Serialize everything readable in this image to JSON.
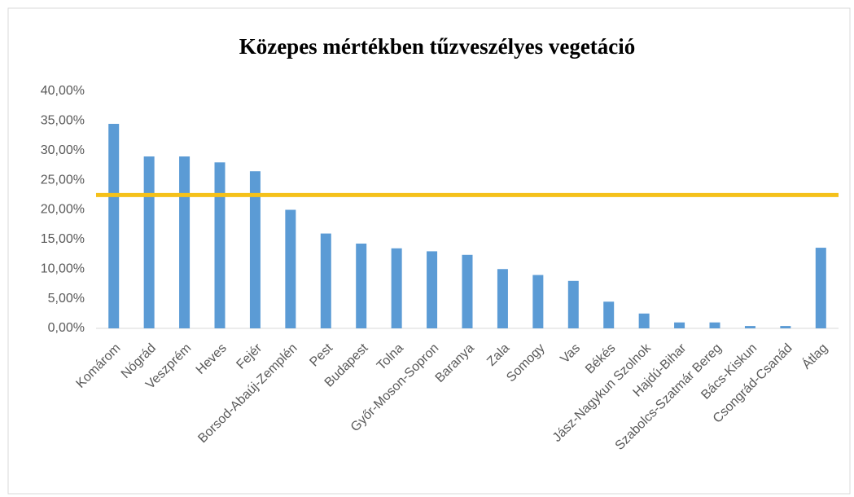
{
  "chart_data": {
    "type": "bar",
    "title": "Közepes mértékben tűzveszélyes vegetáció",
    "categories": [
      "Komárom",
      "Nógrád",
      "Veszprém",
      "Heves",
      "Fejér",
      "Borsod-Abaúj-Zemplén",
      "Pest",
      "Budapest",
      "Tolna",
      "Győr-Moson-Sopron",
      "Baranya",
      "Zala",
      "Somogy",
      "Vas",
      "Békés",
      "Jász-Nagykun Szolnok",
      "Hajdú-Bihar",
      "Szabolcs-Szatmár Bereg",
      "Bács-Kiskun",
      "Csongrád-Csanád",
      "Átlag"
    ],
    "values": [
      34.5,
      29,
      29,
      28,
      26.5,
      20,
      16,
      14.3,
      13.5,
      13,
      12.4,
      10,
      9,
      8,
      4.5,
      2.5,
      1,
      1,
      0.4,
      0.4,
      13.6
    ],
    "color": "#5b9bd5",
    "reference_line": {
      "value": 22.5,
      "color": "#f5c11a"
    },
    "ylim": [
      0,
      40
    ],
    "yticks": [
      {
        "value": 0,
        "label": "0,00%"
      },
      {
        "value": 5,
        "label": "5,00%"
      },
      {
        "value": 10,
        "label": "10,00%"
      },
      {
        "value": 15,
        "label": "15,00%"
      },
      {
        "value": 20,
        "label": "20,00%"
      },
      {
        "value": 25,
        "label": "25,00%"
      },
      {
        "value": 30,
        "label": "30,00%"
      },
      {
        "value": 35,
        "label": "35,00%"
      },
      {
        "value": 40,
        "label": "40,00%"
      }
    ],
    "grid": false
  }
}
